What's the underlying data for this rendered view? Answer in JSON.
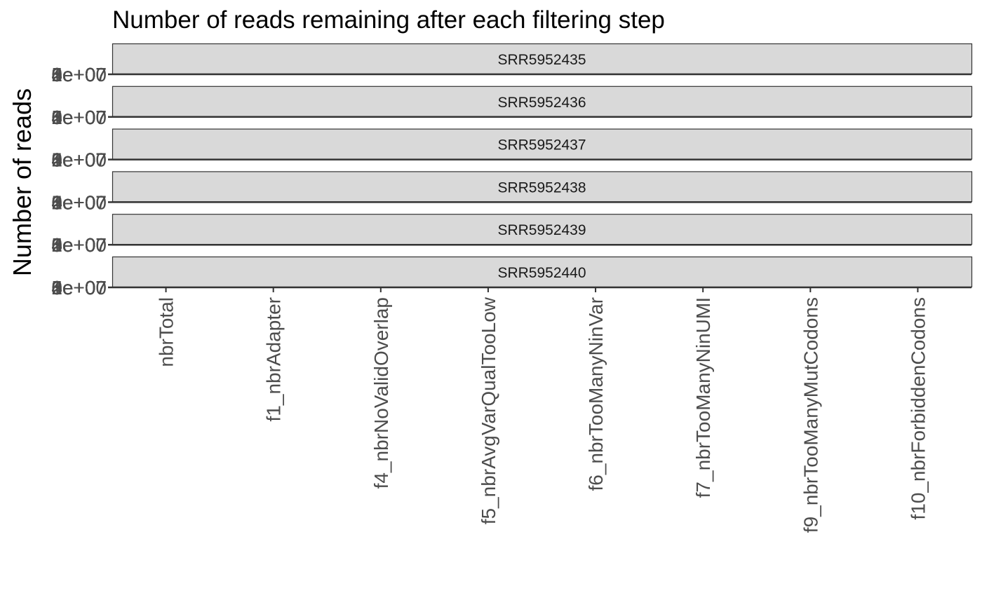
{
  "chart_data": {
    "type": "bar",
    "title": "Number of reads remaining after each filtering step",
    "xlabel": "",
    "ylabel": "Number of reads",
    "categories": [
      "nbrTotal",
      "f1_nbrAdapter",
      "f4_nbrNoValidOverlap",
      "f5_nbrAvgVarQualTooLow",
      "f6_nbrTooManyNinVar",
      "f7_nbrTooManyNinUMI",
      "f9_nbrTooManyMutCodons",
      "f10_nbrForbiddenCodons"
    ],
    "facets": [
      "SRR5952435",
      "SRR5952436",
      "SRR5952437",
      "SRR5952438",
      "SRR5952439",
      "SRR5952440"
    ],
    "y_tick_labels": [
      "0e+00",
      "1e+07",
      "2e+07",
      "3e+07",
      "4e+07",
      "5e+07"
    ],
    "series": [],
    "grid": false,
    "strip_fill": "#d9d9d9"
  }
}
